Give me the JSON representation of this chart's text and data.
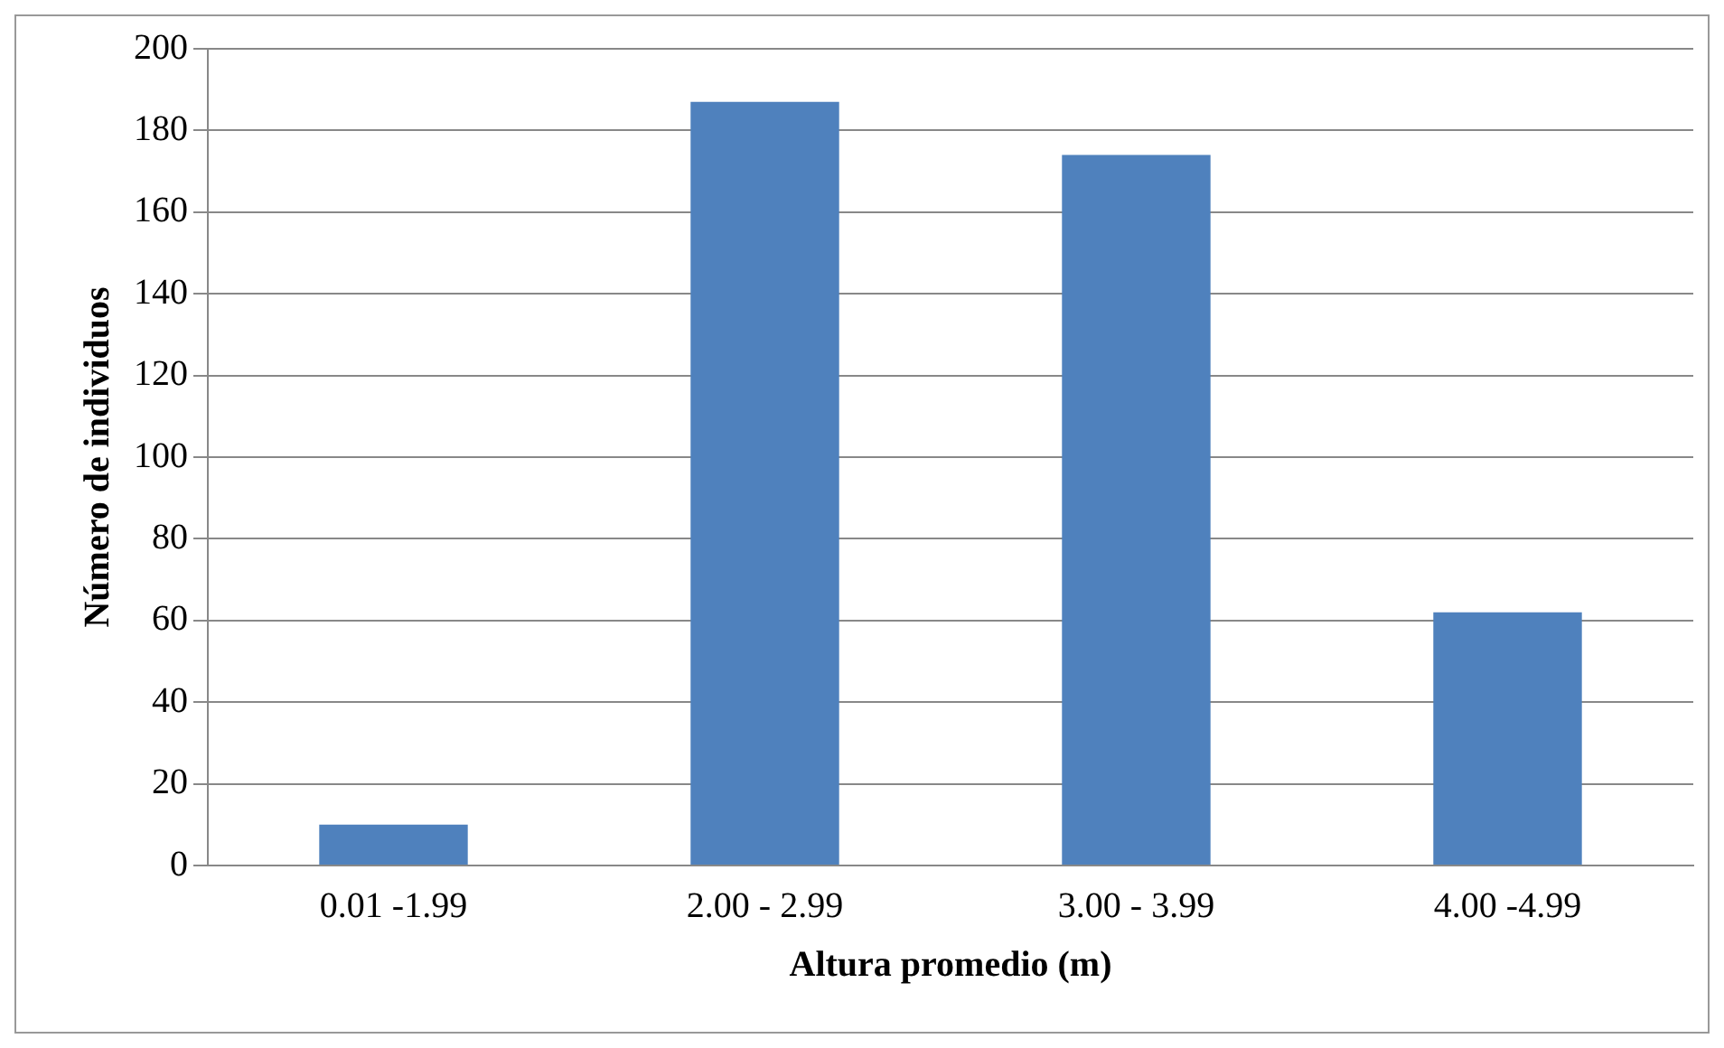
{
  "chart_data": {
    "type": "bar",
    "xlabel": "Altura promedio (m)",
    "ylabel": "Número de individuos",
    "categories": [
      "0.01 -1.99",
      "2.00 - 2.99",
      "3.00 - 3.99",
      "4.00 -4.99"
    ],
    "values": [
      10,
      187,
      174,
      62
    ],
    "color": "#4f81bd",
    "ylim": [
      0,
      200
    ],
    "yticks": [
      0,
      20,
      40,
      60,
      80,
      100,
      120,
      140,
      160,
      180,
      200
    ],
    "grid": "y",
    "legend": false
  }
}
